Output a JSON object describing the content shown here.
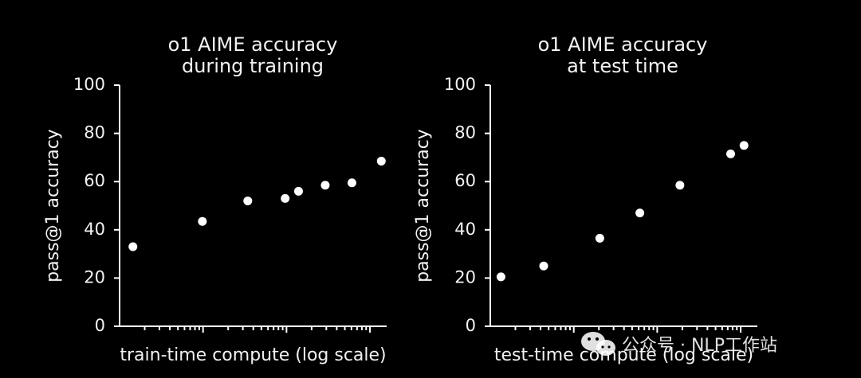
{
  "chart_data": [
    {
      "type": "scatter",
      "title": [
        "o1 AIME accuracy",
        "during training"
      ],
      "xlabel": "train-time compute (log scale)",
      "ylabel": "pass@1 accuracy",
      "xscale": "log",
      "xlim": [
        0,
        1
      ],
      "ylim": [
        0,
        100
      ],
      "yticks": [
        0,
        20,
        40,
        60,
        80,
        100
      ],
      "ytick_labels": [
        "0",
        "20",
        "40",
        "60",
        "80",
        "100"
      ],
      "x": [
        0.05,
        0.31,
        0.48,
        0.62,
        0.67,
        0.77,
        0.87,
        0.98
      ],
      "y": [
        33,
        43.5,
        52,
        53,
        56,
        58.5,
        59.5,
        68.5
      ]
    },
    {
      "type": "scatter",
      "title": [
        "o1 AIME accuracy",
        "at test time"
      ],
      "xlabel": "test-time compute (log scale)",
      "ylabel": "pass@1 accuracy",
      "xscale": "log",
      "xlim": [
        0,
        1
      ],
      "ylim": [
        0,
        100
      ],
      "yticks": [
        0,
        20,
        40,
        60,
        80,
        100
      ],
      "ytick_labels": [
        "0",
        "20",
        "40",
        "60",
        "80",
        "100"
      ],
      "x": [
        0.04,
        0.2,
        0.41,
        0.56,
        0.71,
        0.9,
        0.95
      ],
      "y": [
        20.5,
        25,
        36.5,
        47,
        58.5,
        71.5,
        75
      ]
    }
  ],
  "watermark": {
    "text": "公众号 · NLP工作站",
    "icon": "wechat-icon"
  }
}
